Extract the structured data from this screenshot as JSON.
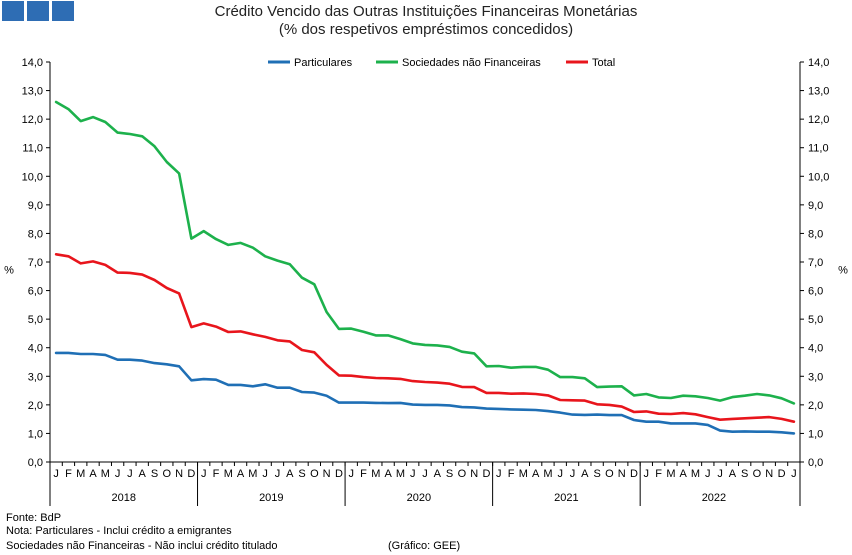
{
  "header": {
    "title": "Crédito Vencido das Outras Instituições Financeiras Monetárias",
    "subtitle": "(% dos respetivos empréstimos concedidos)"
  },
  "footer": {
    "source": "Fonte: BdP",
    "note1": "Nota: Particulares - Inclui crédito a emigrantes",
    "note2": "Sociedades não Financeiras - Não inclui crédito titulado",
    "credit": "(Gráfico: GEE)"
  },
  "chart_data": {
    "type": "line",
    "ylabel": "%",
    "ylim": [
      0,
      14
    ],
    "yticks": [
      "0,0",
      "1,0",
      "2,0",
      "3,0",
      "4,0",
      "5,0",
      "6,0",
      "7,0",
      "8,0",
      "9,0",
      "10,0",
      "11,0",
      "12,0",
      "13,0",
      "14,0"
    ],
    "month_labels": [
      "J",
      "F",
      "M",
      "A",
      "M",
      "J",
      "J",
      "A",
      "S",
      "O",
      "N",
      "D"
    ],
    "years": [
      "2018",
      "2019",
      "2020",
      "2021",
      "2022"
    ],
    "grid": false,
    "legend_position": "top",
    "series": [
      {
        "name": "Particulares",
        "color": "#1f6fb5",
        "values": [
          3.82,
          3.82,
          3.78,
          3.78,
          3.75,
          3.58,
          3.58,
          3.55,
          3.46,
          3.42,
          3.35,
          2.86,
          2.9,
          2.88,
          2.7,
          2.7,
          2.65,
          2.72,
          2.6,
          2.6,
          2.45,
          2.43,
          2.32,
          2.08,
          2.08,
          2.08,
          2.07,
          2.06,
          2.07,
          2.01,
          2.0,
          2.0,
          1.98,
          1.92,
          1.91,
          1.87,
          1.86,
          1.84,
          1.83,
          1.82,
          1.78,
          1.73,
          1.66,
          1.65,
          1.66,
          1.64,
          1.64,
          1.47,
          1.41,
          1.41,
          1.35,
          1.35,
          1.35,
          1.3,
          1.1,
          1.06,
          1.07,
          1.06,
          1.06,
          1.04,
          1.0
        ]
      },
      {
        "name": "Sociedades não Financeiras",
        "color": "#1db14c",
        "values": [
          12.6,
          12.35,
          11.93,
          12.07,
          11.9,
          11.53,
          11.48,
          11.4,
          11.05,
          10.5,
          10.1,
          7.82,
          8.08,
          7.8,
          7.6,
          7.67,
          7.5,
          7.2,
          7.05,
          6.92,
          6.45,
          6.22,
          5.25,
          4.66,
          4.67,
          4.56,
          4.43,
          4.43,
          4.3,
          4.15,
          4.1,
          4.08,
          4.03,
          3.86,
          3.8,
          3.35,
          3.36,
          3.3,
          3.33,
          3.33,
          3.23,
          2.97,
          2.97,
          2.93,
          2.62,
          2.64,
          2.65,
          2.33,
          2.38,
          2.26,
          2.24,
          2.32,
          2.3,
          2.24,
          2.15,
          2.27,
          2.32,
          2.38,
          2.33,
          2.23,
          2.05
        ]
      },
      {
        "name": "Total",
        "color": "#e8151c",
        "values": [
          7.27,
          7.2,
          6.95,
          7.02,
          6.9,
          6.63,
          6.62,
          6.56,
          6.37,
          6.09,
          5.9,
          4.72,
          4.85,
          4.74,
          4.55,
          4.57,
          4.47,
          4.38,
          4.26,
          4.22,
          3.92,
          3.84,
          3.4,
          3.03,
          3.02,
          2.97,
          2.94,
          2.93,
          2.91,
          2.83,
          2.8,
          2.78,
          2.74,
          2.63,
          2.62,
          2.42,
          2.42,
          2.39,
          2.4,
          2.38,
          2.33,
          2.17,
          2.16,
          2.15,
          2.02,
          2.0,
          1.94,
          1.75,
          1.77,
          1.69,
          1.68,
          1.71,
          1.67,
          1.57,
          1.48,
          1.51,
          1.53,
          1.55,
          1.57,
          1.51,
          1.41
        ]
      }
    ]
  }
}
